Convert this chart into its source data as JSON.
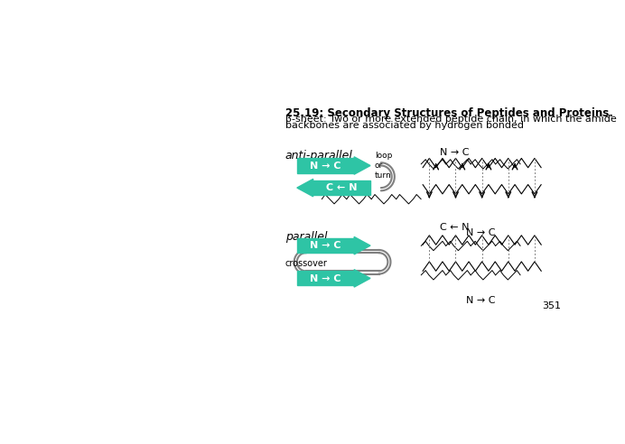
{
  "title_line1": "25.19: Secondary Structures of Peptides and Proteins.",
  "title_line2": "β-sheet: Two or more extended peptide chain, in which the amide",
  "title_line3": "backbones are associated by hydrogen bonded",
  "arrow_color": "#2ec4a5",
  "arrow_text_color": "white",
  "bg_color": "white",
  "page_number": "351",
  "anti_parallel_label": "anti-parallel",
  "parallel_label": "parallel",
  "loop_turn_label": "loop\nor\nturn",
  "crossover_label": "crossover",
  "arrow1_label": "N → C",
  "arrow2_label": "C ← N",
  "arrow3_label": "N → C",
  "arrow4_label": "N → C",
  "NtoC_top": "N → C",
  "CtoN_bottom": "C ← N",
  "NtoC_parallel_top": "N → C",
  "NtoC_parallel_bottom": "N → C"
}
